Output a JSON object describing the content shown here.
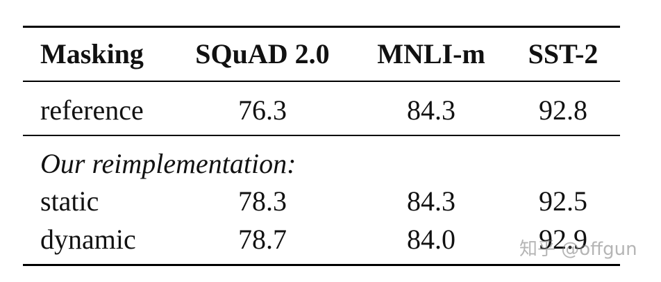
{
  "table": {
    "headers": [
      "Masking",
      "SQuAD 2.0",
      "MNLI-m",
      "SST-2"
    ],
    "reference": {
      "label": "reference",
      "values": [
        "76.3",
        "84.3",
        "92.8"
      ]
    },
    "section_title": "Our reimplementation:",
    "rows": [
      {
        "label": "static",
        "values": [
          "78.3",
          "84.3",
          "92.5"
        ]
      },
      {
        "label": "dynamic",
        "values": [
          "78.7",
          "84.0",
          "92.9"
        ]
      }
    ]
  },
  "watermark": "知乎 @offgun"
}
